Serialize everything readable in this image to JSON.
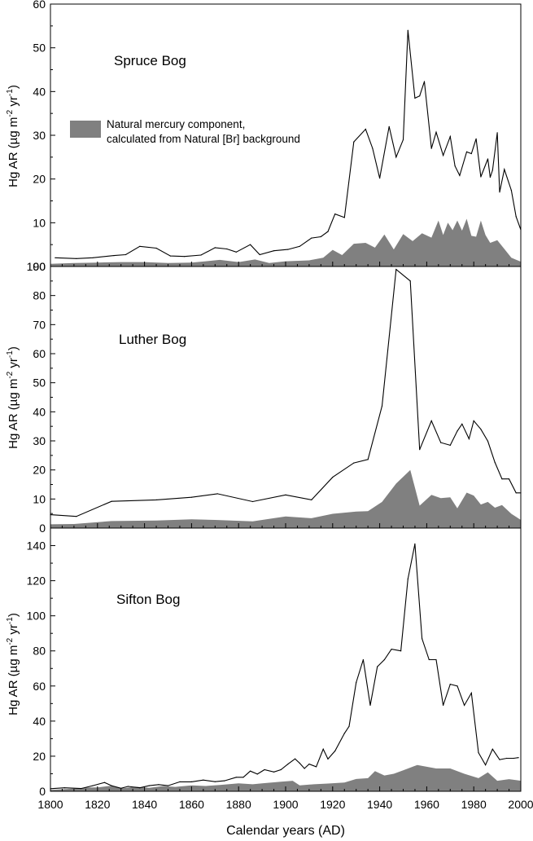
{
  "figure": {
    "xlabel": "Calendar years (AD)",
    "x_ticks": [
      1800,
      1820,
      1840,
      1860,
      1880,
      1900,
      1920,
      1940,
      1960,
      1980,
      2000
    ],
    "legend": {
      "line1": "Natural mercury component,",
      "line2": "calculated from Natural [Br] background",
      "swatch_color": "#808080"
    },
    "colors": {
      "line": "#000000",
      "fill": "#808080",
      "axis": "#000000"
    }
  },
  "chart_data": [
    {
      "type": "area",
      "title": "Spruce Bog",
      "ylabel": {
        "main": "Hg AR (µg m",
        "sup1": "-2",
        "mid": " yr",
        "sup2": "-1",
        "end": ")"
      },
      "xlim": [
        1800,
        2000
      ],
      "ylim": [
        0,
        60
      ],
      "y_ticks": [
        10,
        20,
        30,
        40,
        50,
        60
      ],
      "y_tick_labels": [
        "10",
        "20",
        "30",
        "40",
        "50",
        "60"
      ],
      "bottom_tick_label": "100",
      "series": [
        {
          "name": "Hg AR",
          "style": "line",
          "x": [
            1802,
            1811,
            1818,
            1827,
            1832,
            1838,
            1845,
            1851,
            1857,
            1864,
            1870,
            1875,
            1879,
            1885,
            1889,
            1895,
            1901,
            1906,
            1911,
            1915,
            1918,
            1921,
            1925,
            1929,
            1934,
            1937,
            1940,
            1944,
            1947,
            1950,
            1952,
            1955,
            1957,
            1959,
            1962,
            1964,
            1967,
            1970,
            1972,
            1974,
            1977,
            1979,
            1981,
            1983,
            1986,
            1987,
            1988,
            1990,
            1991,
            1993,
            1996,
            1998,
            2000
          ],
          "y": [
            2.0,
            1.8,
            2.0,
            2.5,
            2.7,
            4.6,
            4.2,
            2.4,
            2.3,
            2.6,
            4.3,
            4.0,
            3.3,
            5.0,
            2.7,
            3.6,
            3.9,
            4.6,
            6.5,
            6.8,
            8.0,
            12.0,
            11.2,
            28.5,
            31.4,
            27.0,
            20.2,
            32.0,
            25.0,
            29.0,
            54.0,
            38.5,
            39.0,
            42.3,
            27.0,
            30.7,
            25.4,
            29.7,
            23.0,
            20.8,
            26.2,
            25.8,
            29.2,
            20.5,
            24.6,
            20.4,
            22.0,
            30.6,
            17.0,
            22.2,
            17.4,
            11.4,
            8.4
          ]
        },
        {
          "name": "Natural mercury component",
          "style": "area",
          "x": [
            1800,
            1810,
            1820,
            1830,
            1840,
            1850,
            1860,
            1866,
            1872,
            1880,
            1887,
            1893,
            1900,
            1910,
            1916,
            1920,
            1924,
            1929,
            1934,
            1938,
            1942,
            1946,
            1950,
            1954,
            1958,
            1962,
            1965,
            1967,
            1969,
            1971,
            1973,
            1975,
            1977,
            1979,
            1981,
            1983,
            1985,
            1987,
            1990,
            1993,
            1996,
            2000
          ],
          "y": [
            0.6,
            0.8,
            0.9,
            1.0,
            1.0,
            0.8,
            0.9,
            1.2,
            1.5,
            1.0,
            1.6,
            0.8,
            1.2,
            1.4,
            2.0,
            3.8,
            2.6,
            5.2,
            5.4,
            4.3,
            7.3,
            3.9,
            7.4,
            5.8,
            7.6,
            6.6,
            10.5,
            7.2,
            10.0,
            8.3,
            10.5,
            8.2,
            10.9,
            7.0,
            6.8,
            10.5,
            7.2,
            5.4,
            6.0,
            4.0,
            2.0,
            1.1
          ]
        }
      ]
    },
    {
      "type": "area",
      "title": "Luther Bog",
      "ylabel": {
        "main": "Hg AR (µg m",
        "sup1": "-2",
        "mid": " yr",
        "sup2": "-1",
        "end": ")"
      },
      "xlim": [
        1800,
        2000
      ],
      "ylim": [
        0,
        90
      ],
      "y_ticks": [
        0,
        10,
        20,
        30,
        40,
        50,
        60,
        70,
        80,
        90
      ],
      "y_tick_labels": [
        "0",
        "10",
        "20",
        "30",
        "40",
        "50",
        "60",
        "70",
        "80",
        "90"
      ],
      "series": [
        {
          "name": "Hg AR",
          "style": "line",
          "x": [
            1800,
            1811,
            1826,
            1845,
            1860,
            1871,
            1886,
            1900,
            1911,
            1920,
            1929,
            1935,
            1941,
            1947,
            1953,
            1957,
            1962,
            1966,
            1970,
            1973,
            1975,
            1978,
            1980,
            1983,
            1986,
            1989,
            1992,
            1995,
            1998,
            2000
          ],
          "y": [
            4.6,
            4.0,
            9.2,
            9.7,
            10.6,
            11.8,
            9.1,
            11.4,
            9.7,
            17.5,
            22.4,
            23.6,
            42.0,
            89.0,
            85.0,
            27.0,
            36.9,
            29.4,
            28.5,
            33.4,
            35.8,
            30.7,
            36.9,
            34.0,
            29.9,
            22.6,
            16.9,
            16.9,
            12.1,
            12.1
          ]
        },
        {
          "name": "Natural mercury component",
          "style": "area",
          "x": [
            1800,
            1810,
            1826,
            1845,
            1860,
            1870,
            1886,
            1900,
            1911,
            1920,
            1930,
            1935,
            1941,
            1947,
            1953,
            1957,
            1962,
            1966,
            1970,
            1973,
            1977,
            1980,
            1983,
            1986,
            1989,
            1992,
            1996,
            2000
          ],
          "y": [
            1.3,
            1.4,
            2.4,
            2.6,
            3.0,
            2.8,
            2.3,
            4.0,
            3.4,
            4.9,
            5.7,
            5.8,
            9.0,
            15.3,
            20.0,
            7.7,
            11.4,
            10.3,
            10.6,
            6.8,
            12.2,
            11.2,
            8.1,
            9.0,
            7.0,
            7.9,
            4.9,
            2.8
          ]
        }
      ]
    },
    {
      "type": "area",
      "title": "Sifton Bog",
      "ylabel": {
        "main": "Hg AR (µg m",
        "sup1": "-2",
        "mid": " yr",
        "sup2": "-1",
        "end": ")"
      },
      "xlim": [
        1800,
        2000
      ],
      "ylim": [
        0,
        150
      ],
      "y_ticks": [
        0,
        20,
        40,
        60,
        80,
        100,
        120,
        140
      ],
      "y_tick_labels": [
        "0",
        "20",
        "40",
        "60",
        "80",
        "100",
        "120",
        "140"
      ],
      "series": [
        {
          "name": "Hg AR",
          "style": "line",
          "x": [
            1800,
            1806,
            1813,
            1818,
            1823,
            1826,
            1830,
            1833,
            1838,
            1842,
            1846,
            1850,
            1855,
            1860,
            1865,
            1870,
            1874,
            1879,
            1882,
            1885,
            1888,
            1891,
            1895,
            1898,
            1901,
            1904,
            1906,
            1908,
            1910,
            1913,
            1916,
            1918,
            1921,
            1925,
            1927,
            1930,
            1933,
            1936,
            1939,
            1942,
            1945,
            1949,
            1952,
            1955,
            1958,
            1961,
            1964,
            1967,
            1970,
            1973,
            1976,
            1979,
            1982,
            1985,
            1988,
            1991,
            1994,
            1997,
            1999
          ],
          "y": [
            1.5,
            2.0,
            1.6,
            3.2,
            5.0,
            3.2,
            1.7,
            2.8,
            2.0,
            3.2,
            3.8,
            3.2,
            5.4,
            5.4,
            6.4,
            5.5,
            6.0,
            8.0,
            8.0,
            11.5,
            9.8,
            12.3,
            11.0,
            12.3,
            15.5,
            18.5,
            16.0,
            13.0,
            15.5,
            14.0,
            24.0,
            18.4,
            23.0,
            33.0,
            37.0,
            62.0,
            75.0,
            49.0,
            71.0,
            75.0,
            81.0,
            80.0,
            121.0,
            141.0,
            87.0,
            75.0,
            75.0,
            49.0,
            61.0,
            60.0,
            49.0,
            56.0,
            22.0,
            15.0,
            24.0,
            18.0,
            18.8,
            18.8,
            19.2
          ]
        },
        {
          "name": "Natural mercury component",
          "style": "area",
          "x": [
            1800,
            1810,
            1816,
            1820,
            1826,
            1830,
            1836,
            1842,
            1848,
            1853,
            1860,
            1866,
            1872,
            1880,
            1886,
            1890,
            1898,
            1903,
            1906,
            1912,
            1918,
            1925,
            1930,
            1935,
            1938,
            1942,
            1946,
            1950,
            1956,
            1960,
            1964,
            1970,
            1976,
            1982,
            1986,
            1990,
            1995,
            2000
          ],
          "y": [
            0.8,
            1.5,
            2.2,
            2.2,
            3.2,
            1.6,
            2.6,
            2.0,
            3.0,
            2.5,
            3.4,
            3.0,
            3.6,
            4.5,
            4.0,
            4.5,
            5.5,
            6.0,
            3.4,
            4.0,
            4.4,
            5.0,
            7.0,
            7.5,
            11.5,
            9.0,
            10.0,
            12.0,
            15.0,
            14.0,
            13.0,
            13.0,
            10.0,
            7.5,
            10.8,
            6.0,
            6.9,
            6.0
          ]
        }
      ]
    }
  ]
}
